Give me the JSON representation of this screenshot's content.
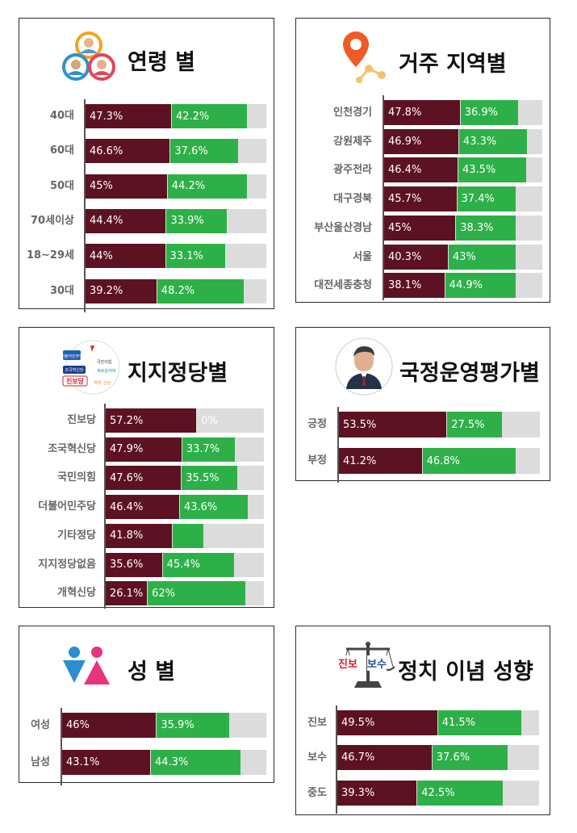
{
  "colors": {
    "negative": "#5c1222",
    "positive": "#2eb048",
    "remainder": "#dcdcdc"
  },
  "chart_data": [
    {
      "type": "bar",
      "title": "연령 별",
      "icon": "people-icon",
      "stacked": true,
      "categories": [
        "40대",
        "60대",
        "50대",
        "70세이상",
        "18~29세",
        "30대"
      ],
      "series": [
        {
          "values": [
            47.3,
            46.6,
            45,
            44.4,
            44,
            39.2
          ],
          "labels": [
            "47.3%",
            "46.6%",
            "45%",
            "44.4%",
            "44%",
            "39.2%"
          ]
        },
        {
          "values": [
            42.2,
            37.6,
            44.2,
            33.9,
            33.1,
            48.2
          ],
          "labels": [
            "42.2%",
            "37.6%",
            "44.2%",
            "33.9%",
            "33.1%",
            "48.2%"
          ]
        }
      ],
      "xlim": [
        0,
        100
      ]
    },
    {
      "type": "bar",
      "title": "거주 지역별",
      "icon": "location-pin-icon",
      "stacked": true,
      "categories": [
        "인천경기",
        "강원제주",
        "광주전라",
        "대구경북",
        "부산울산경남",
        "서울",
        "대전세종충청"
      ],
      "series": [
        {
          "values": [
            47.8,
            46.9,
            46.4,
            45.7,
            45,
            40.3,
            38.1
          ],
          "labels": [
            "47.8%",
            "46.9%",
            "46.4%",
            "45.7%",
            "45%",
            "40.3%",
            "38.1%"
          ]
        },
        {
          "values": [
            36.9,
            43.3,
            43.5,
            37.4,
            38.3,
            43,
            44.9
          ],
          "labels": [
            "36.9%",
            "43.3%",
            "43.5%",
            "37.4%",
            "38.3%",
            "43%",
            "44.9%"
          ]
        }
      ],
      "xlim": [
        0,
        100
      ]
    },
    {
      "type": "bar",
      "title": "지지정당별",
      "icon": "party-logos-icon",
      "stacked": true,
      "categories": [
        "진보당",
        "조국혁신당",
        "국민의힘",
        "더불어민주당",
        "기타정당",
        "지지정당없음",
        "개혁신당"
      ],
      "series": [
        {
          "values": [
            57.2,
            47.9,
            47.6,
            46.4,
            41.8,
            35.6,
            26.1
          ],
          "labels": [
            "57.2%",
            "47.9%",
            "47.6%",
            "46.4%",
            "41.8%",
            "35.6%",
            "26.1%"
          ]
        },
        {
          "values": [
            0,
            33.7,
            35.5,
            43.6,
            20,
            45.4,
            62
          ],
          "labels": [
            "0%",
            "33.7%",
            "35.5%",
            "43.6%",
            "",
            "45.4%",
            "62%"
          ]
        }
      ],
      "xlim": [
        0,
        100
      ]
    },
    {
      "type": "bar",
      "title": "국정운영평가별",
      "icon": "president-portrait-icon",
      "stacked": true,
      "categories": [
        "긍정",
        "부정"
      ],
      "series": [
        {
          "values": [
            53.5,
            41.2
          ],
          "labels": [
            "53.5%",
            "41.2%"
          ]
        },
        {
          "values": [
            27.5,
            46.8
          ],
          "labels": [
            "27.5%",
            "46.8%"
          ]
        }
      ],
      "xlim": [
        0,
        100
      ]
    },
    {
      "type": "bar",
      "title": "성 별",
      "icon": "gender-icon",
      "stacked": true,
      "categories": [
        "여성",
        "남성"
      ],
      "series": [
        {
          "values": [
            46,
            43.1
          ],
          "labels": [
            "46%",
            "43.1%"
          ]
        },
        {
          "values": [
            35.9,
            44.3
          ],
          "labels": [
            "35.9%",
            "44.3%"
          ]
        }
      ],
      "xlim": [
        0,
        100
      ]
    },
    {
      "type": "bar",
      "title": "정치 이념 성향",
      "icon": "scale-icon",
      "icon_text": [
        "진보",
        "보수"
      ],
      "stacked": true,
      "categories": [
        "진보",
        "보수",
        "중도"
      ],
      "series": [
        {
          "values": [
            49.5,
            46.7,
            39.3
          ],
          "labels": [
            "49.5%",
            "46.7%",
            "39.3%"
          ]
        },
        {
          "values": [
            41.5,
            37.6,
            42.5
          ],
          "labels": [
            "41.5%",
            "37.6%",
            "42.5%"
          ]
        }
      ],
      "xlim": [
        0,
        100
      ]
    }
  ],
  "party_logo_text": [
    "더불어민주당",
    "국민의힘",
    "조국혁신당",
    "새로운미래",
    "진보당",
    "개혁",
    "신당"
  ]
}
